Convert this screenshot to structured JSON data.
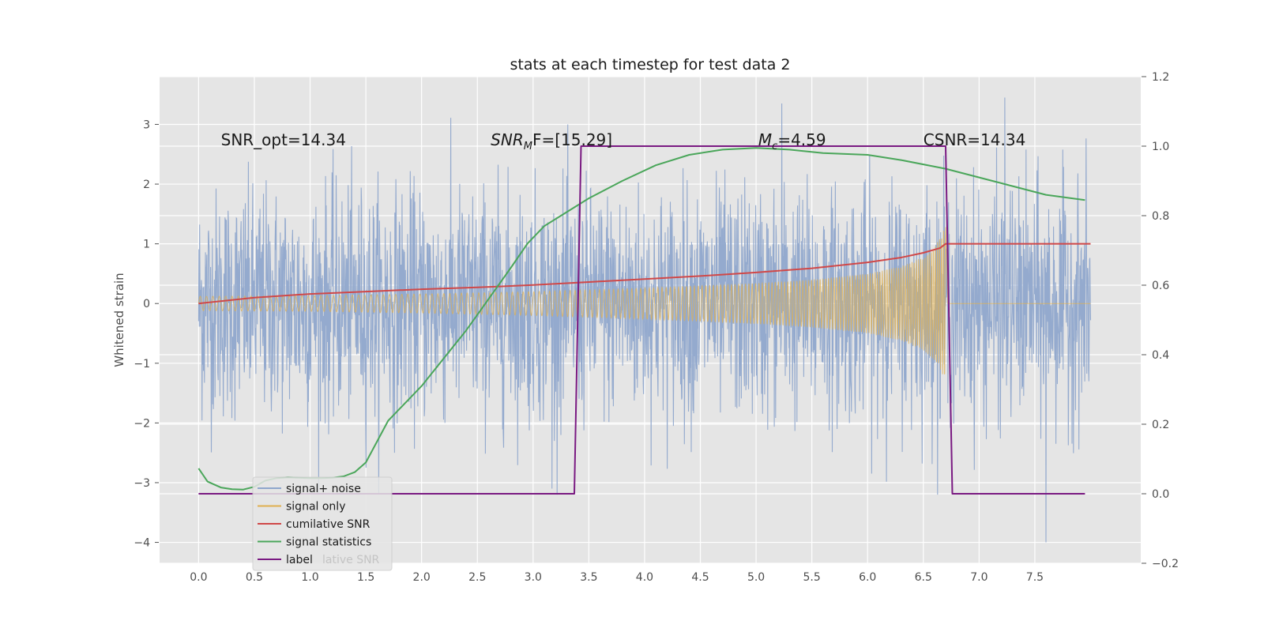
{
  "chart_data": {
    "type": "line",
    "title": "stats at each timestep for test data 2",
    "ylabel": "Whitened strain",
    "xlim": [
      -0.35,
      8.45
    ],
    "ylim": [
      -4.35,
      3.8
    ],
    "y2lim": [
      -0.2,
      1.2
    ],
    "xticks": [
      "0.0",
      "0.5",
      "1.0",
      "1.5",
      "2.0",
      "2.5",
      "3.0",
      "3.5",
      "4.0",
      "4.5",
      "5.0",
      "5.5",
      "6.0",
      "6.5",
      "7.0",
      "7.5"
    ],
    "yticks": [
      "−4",
      "−3",
      "−2",
      "−1",
      "0",
      "1",
      "2",
      "3"
    ],
    "y2ticks": [
      "−0.2",
      "0.0",
      "0.2",
      "0.4",
      "0.6",
      "0.8",
      "1.0",
      "1.2"
    ],
    "grid": true,
    "legend_position": "lower-left",
    "annotations": [
      {
        "text": "SNR_opt=14.34",
        "x": 0.2,
        "y": 2.65
      },
      {
        "text_main": "SNR",
        "text_sub": "M",
        "text_rest": "F=[15.29]",
        "x": 2.62,
        "y": 2.65
      },
      {
        "text_main": "M",
        "text_sub": "c",
        "text_rest": "=4.59",
        "x": 5.02,
        "y": 2.65
      },
      {
        "text": "CSNR=14.34",
        "x": 6.5,
        "y": 2.65
      }
    ],
    "series": [
      {
        "name": "signal+ noise",
        "color": "#8fa6cc",
        "axis": "left",
        "x_range": [
          0,
          8
        ],
        "amplitude_sd": 0.95,
        "peaks": [
          3.35,
          3.45,
          -3.1,
          -4.0
        ]
      },
      {
        "name": "signal only",
        "color": "#e0b050",
        "axis": "left",
        "envelope": [
          [
            0,
            0.12
          ],
          [
            1,
            0.13
          ],
          [
            2,
            0.16
          ],
          [
            3,
            0.2
          ],
          [
            4,
            0.26
          ],
          [
            5,
            0.34
          ],
          [
            5.5,
            0.4
          ],
          [
            6,
            0.5
          ],
          [
            6.3,
            0.62
          ],
          [
            6.5,
            0.78
          ],
          [
            6.6,
            0.95
          ],
          [
            6.65,
            1.1
          ],
          [
            6.7,
            1.3
          ]
        ],
        "end_x": 6.7,
        "x_end": 8.0
      },
      {
        "name": "cumilative SNR",
        "color": "#d04848",
        "axis": "left",
        "points": [
          [
            0,
            0.0
          ],
          [
            0.5,
            0.1
          ],
          [
            1,
            0.16
          ],
          [
            1.5,
            0.2
          ],
          [
            2,
            0.24
          ],
          [
            2.5,
            0.27
          ],
          [
            3,
            0.31
          ],
          [
            3.5,
            0.36
          ],
          [
            4,
            0.41
          ],
          [
            4.5,
            0.46
          ],
          [
            5,
            0.52
          ],
          [
            5.5,
            0.59
          ],
          [
            6,
            0.69
          ],
          [
            6.3,
            0.77
          ],
          [
            6.5,
            0.85
          ],
          [
            6.65,
            0.93
          ],
          [
            6.7,
            1.0
          ],
          [
            8.0,
            1.0
          ]
        ]
      },
      {
        "name": "signal statistics",
        "color": "#4aa65a",
        "axis": "right",
        "points": [
          [
            0,
            0.073
          ],
          [
            0.08,
            0.035
          ],
          [
            0.2,
            0.018
          ],
          [
            0.3,
            0.013
          ],
          [
            0.4,
            0.012
          ],
          [
            0.5,
            0.02
          ],
          [
            0.6,
            0.038
          ],
          [
            0.7,
            0.045
          ],
          [
            0.8,
            0.047
          ],
          [
            0.9,
            0.046
          ],
          [
            1.0,
            0.045
          ],
          [
            1.1,
            0.045
          ],
          [
            1.2,
            0.046
          ],
          [
            1.3,
            0.05
          ],
          [
            1.4,
            0.062
          ],
          [
            1.5,
            0.09
          ],
          [
            1.6,
            0.15
          ],
          [
            1.7,
            0.21
          ],
          [
            1.85,
            0.26
          ],
          [
            2.0,
            0.31
          ],
          [
            2.2,
            0.39
          ],
          [
            2.4,
            0.47
          ],
          [
            2.6,
            0.56
          ],
          [
            2.8,
            0.65
          ],
          [
            2.95,
            0.72
          ],
          [
            3.1,
            0.77
          ],
          [
            3.3,
            0.81
          ],
          [
            3.5,
            0.85
          ],
          [
            3.8,
            0.9
          ],
          [
            4.1,
            0.945
          ],
          [
            4.4,
            0.975
          ],
          [
            4.7,
            0.99
          ],
          [
            5.0,
            0.995
          ],
          [
            5.3,
            0.99
          ],
          [
            5.6,
            0.98
          ],
          [
            6.0,
            0.975
          ],
          [
            6.3,
            0.96
          ],
          [
            6.7,
            0.935
          ],
          [
            7.0,
            0.91
          ],
          [
            7.3,
            0.885
          ],
          [
            7.6,
            0.86
          ],
          [
            7.95,
            0.845
          ]
        ]
      },
      {
        "name": "label",
        "color": "#7a1a82",
        "axis": "right",
        "points": [
          [
            0,
            0
          ],
          [
            3.37,
            0
          ],
          [
            3.43,
            1
          ],
          [
            6.7,
            1
          ],
          [
            6.76,
            0
          ],
          [
            7.95,
            0
          ]
        ]
      }
    ],
    "legend_background_text": "lative SNR"
  }
}
